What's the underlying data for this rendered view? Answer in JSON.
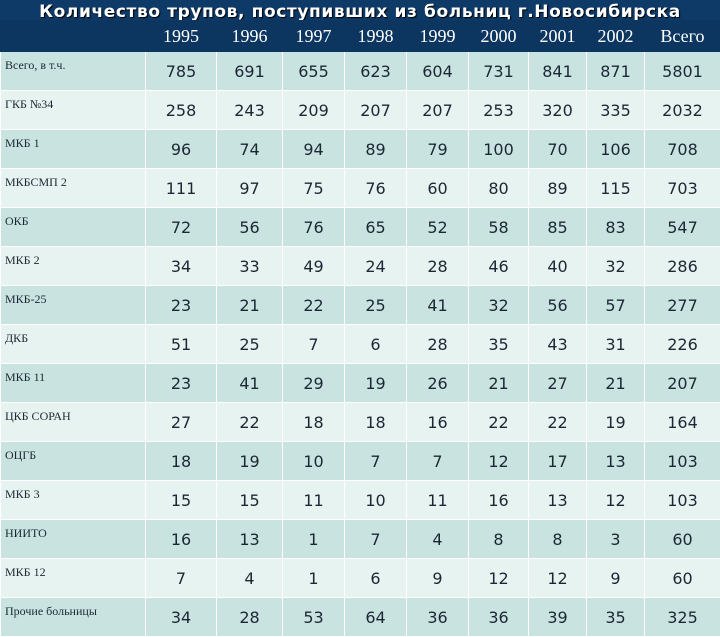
{
  "slide": {
    "title": "Количество трупов, поступивших из больниц г.Новосибирска"
  },
  "table": {
    "columns": [
      "1995",
      "1996",
      "1997",
      "1998",
      "1999",
      "2000",
      "2001",
      "2002",
      "Всего"
    ],
    "rows": [
      {
        "label": "Всего, в т.ч.",
        "values": [
          "785",
          "691",
          "655",
          "623",
          "604",
          "731",
          "841",
          "871",
          "5801"
        ]
      },
      {
        "label": "ГКБ №34",
        "values": [
          "258",
          "243",
          "209",
          "207",
          "207",
          "253",
          "320",
          "335",
          "2032"
        ]
      },
      {
        "label": "МКБ 1",
        "values": [
          "96",
          "74",
          "94",
          "89",
          "79",
          "100",
          "70",
          "106",
          "708"
        ]
      },
      {
        "label": "МКБСМП 2",
        "values": [
          "111",
          "97",
          "75",
          "76",
          "60",
          "80",
          "89",
          "115",
          "703"
        ]
      },
      {
        "label": "ОКБ",
        "values": [
          "72",
          "56",
          "76",
          "65",
          "52",
          "58",
          "85",
          "83",
          "547"
        ]
      },
      {
        "label": "МКБ 2",
        "values": [
          "34",
          "33",
          "49",
          "24",
          "28",
          "46",
          "40",
          "32",
          "286"
        ]
      },
      {
        "label": "МКБ-25",
        "values": [
          "23",
          "21",
          "22",
          "25",
          "41",
          "32",
          "56",
          "57",
          "277"
        ]
      },
      {
        "label": "ДКБ",
        "values": [
          "51",
          "25",
          "7",
          "6",
          "28",
          "35",
          "43",
          "31",
          "226"
        ]
      },
      {
        "label": "МКБ 11",
        "values": [
          "23",
          "41",
          "29",
          "19",
          "26",
          "21",
          "27",
          "21",
          "207"
        ]
      },
      {
        "label": "ЦКБ СОРАН",
        "values": [
          "27",
          "22",
          "18",
          "18",
          "16",
          "22",
          "22",
          "19",
          "164"
        ]
      },
      {
        "label": "ОЦГБ",
        "values": [
          "18",
          "19",
          "10",
          "7",
          "7",
          "12",
          "17",
          "13",
          "103"
        ]
      },
      {
        "label": "МКБ 3",
        "values": [
          "15",
          "15",
          "11",
          "10",
          "11",
          "16",
          "13",
          "12",
          "103"
        ]
      },
      {
        "label": "НИИТО",
        "values": [
          "16",
          "13",
          "1",
          "7",
          "4",
          "8",
          "8",
          "3",
          "60"
        ]
      },
      {
        "label": "МКБ 12",
        "values": [
          "7",
          "4",
          "1",
          "6",
          "9",
          "12",
          "12",
          "9",
          "60"
        ]
      },
      {
        "label": "Прочие больницы",
        "values": [
          "34",
          "28",
          "53",
          "64",
          "36",
          "36",
          "39",
          "35",
          "325"
        ]
      }
    ]
  }
}
